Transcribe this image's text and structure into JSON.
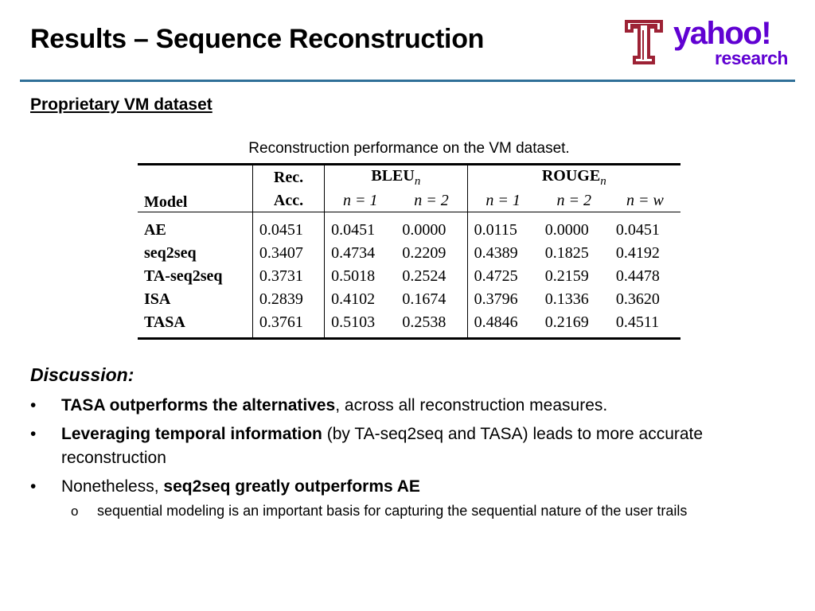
{
  "slide": {
    "title": "Results – Sequence Reconstruction",
    "subtitle": "Proprietary VM dataset"
  },
  "logos": {
    "temple": {
      "name": "temple-university-logo",
      "color": "#9d2235"
    },
    "yahoo": {
      "line1": "yahoo!",
      "line2": "research",
      "color": "#6001d2"
    }
  },
  "table": {
    "caption": "Reconstruction performance on the VM dataset.",
    "header": {
      "model": "Model",
      "rec_line1": "Rec.",
      "rec_line2": "Acc.",
      "bleu": "BLEU",
      "rouge": "ROUGE",
      "subscript": "n",
      "sub_cols": [
        "n = 1",
        "n = 2",
        "n = 1",
        "n = 2",
        "n = w"
      ]
    },
    "rows": [
      {
        "model": "AE",
        "values": [
          "0.0451",
          "0.0451",
          "0.0000",
          "0.0115",
          "0.0000",
          "0.0451"
        ]
      },
      {
        "model": "seq2seq",
        "values": [
          "0.3407",
          "0.4734",
          "0.2209",
          "0.4389",
          "0.1825",
          "0.4192"
        ]
      },
      {
        "model": "TA-seq2seq",
        "values": [
          "0.3731",
          "0.5018",
          "0.2524",
          "0.4725",
          "0.2159",
          "0.4478"
        ]
      },
      {
        "model": "ISA",
        "values": [
          "0.2839",
          "0.4102",
          "0.1674",
          "0.3796",
          "0.1336",
          "0.3620"
        ]
      },
      {
        "model": "TASA",
        "values": [
          "0.3761",
          "0.5103",
          "0.2538",
          "0.4846",
          "0.2169",
          "0.4511"
        ]
      }
    ]
  },
  "discussion": {
    "heading": "Discussion:",
    "bullet_glyph": "•",
    "sub_glyph": "o",
    "bullets": [
      {
        "bold": "TASA outperforms the alternatives",
        "rest": ", across all reconstruction measures."
      },
      {
        "bold": "Leveraging temporal information",
        "rest": " (by TA-seq2seq and TASA) leads to more accurate reconstruction"
      },
      {
        "pre": "Nonetheless, ",
        "bold": "seq2seq greatly outperforms AE"
      }
    ],
    "sub_bullet": "sequential modeling is an important basis for capturing the sequential nature of the user trails"
  },
  "colors": {
    "title_rule": "#2f6f98"
  }
}
